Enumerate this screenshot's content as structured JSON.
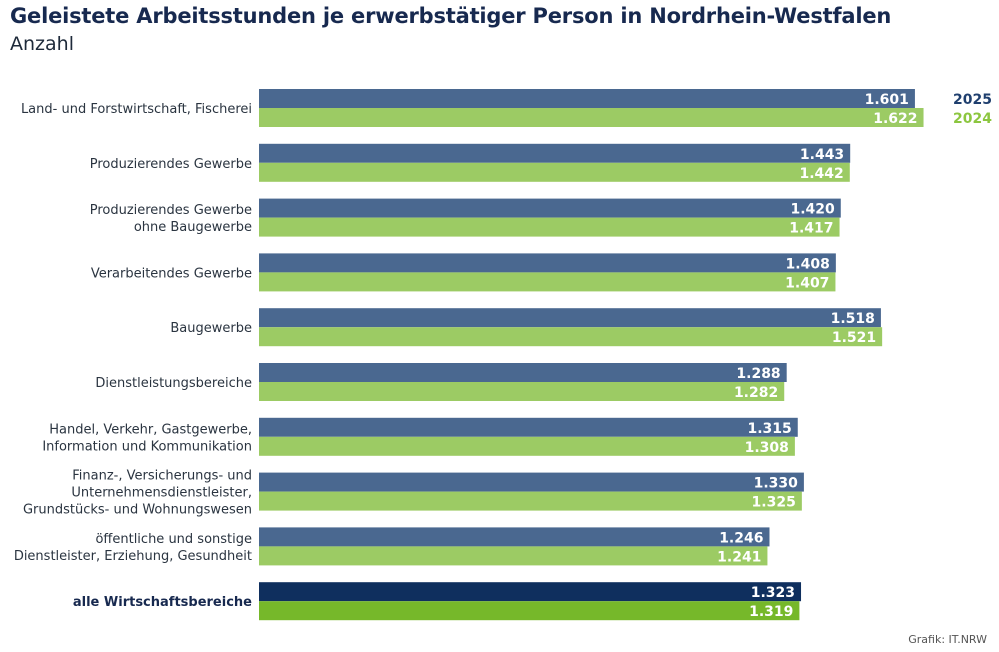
{
  "chart_data": {
    "type": "bar",
    "orientation": "horizontal",
    "title": "Geleistete Arbeitsstunden je erwerbstätiger Person in Nordrhein-Westfalen",
    "subtitle": "Anzahl",
    "xlabel": "",
    "ylabel": "",
    "xlim": [
      0,
      1650
    ],
    "grid": false,
    "legend_position": "top-right",
    "categories": [
      [
        "Land- und Forstwirtschaft, Fischerei"
      ],
      [
        "Produzierendes Gewerbe"
      ],
      [
        "Produzierendes Gewerbe",
        "ohne Baugewerbe"
      ],
      [
        "Verarbeitendes Gewerbe"
      ],
      [
        "Baugewerbe"
      ],
      [
        "Dienstleistungsbereiche"
      ],
      [
        "Handel, Verkehr, Gastgewerbe,",
        "Information und Kommunikation"
      ],
      [
        "Finanz-, Versicherungs- und",
        "Unternehmensdienstleister,",
        "Grundstücks- und Wohnungswesen"
      ],
      [
        "öffentliche und sonstige",
        "Dienstleister, Erziehung, Gesundheit"
      ],
      [
        "alle Wirtschaftsbereiche"
      ]
    ],
    "highlight_category_index": 9,
    "series": [
      {
        "name": "2025",
        "color": "#4a6890",
        "highlight_color": "#0f2f5e",
        "values": [
          1601,
          1443,
          1420,
          1408,
          1518,
          1288,
          1315,
          1330,
          1246,
          1323
        ],
        "labels": [
          "1.601",
          "1.443",
          "1.420",
          "1.408",
          "1.518",
          "1.288",
          "1.315",
          "1.330",
          "1.246",
          "1.323"
        ]
      },
      {
        "name": "2024",
        "color": "#9ccb64",
        "highlight_color": "#76b82a",
        "values": [
          1622,
          1442,
          1417,
          1407,
          1521,
          1282,
          1308,
          1325,
          1241,
          1319
        ],
        "labels": [
          "1.622",
          "1.442",
          "1.417",
          "1.407",
          "1.521",
          "1.282",
          "1.308",
          "1.325",
          "1.241",
          "1.319"
        ]
      }
    ],
    "source": "Grafik: IT.NRW"
  }
}
